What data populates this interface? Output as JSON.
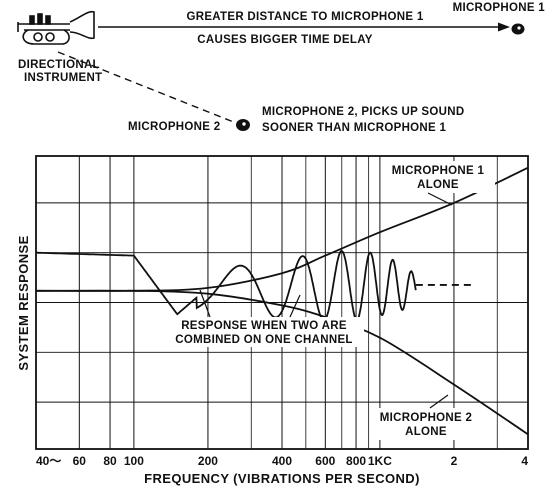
{
  "top": {
    "instrument_label_line1": "DIRECTIONAL",
    "instrument_label_line2": "INSTRUMENT",
    "arrow_text_line1": "GREATER DISTANCE TO MICROPHONE 1",
    "arrow_text_line2": "CAUSES BIGGER TIME DELAY",
    "mic1_label": "MICROPHONE 1",
    "mic2_label": "MICROPHONE 2",
    "mic2_note_line1": "MICROPHONE 2, PICKS UP SOUND",
    "mic2_note_line2": "SOONER THAN MICROPHONE 1"
  },
  "chart": {
    "ylabel": "SYSTEM RESPONSE",
    "xlabel": "FREQUENCY (VIBRATIONS PER SECOND)",
    "x_ticks": [
      "40〜",
      "60",
      "80",
      "100",
      "200",
      "400",
      "600",
      "800",
      "1KC",
      "2",
      "4"
    ],
    "annotations": {
      "mic1_line1": "MICROPHONE 1",
      "mic1_line2": "ALONE",
      "combined_line1": "RESPONSE WHEN TWO ARE",
      "combined_line2": "COMBINED ON ONE CHANNEL",
      "mic2_line1": "MICROPHONE 2",
      "mic2_line2": "ALONE"
    }
  },
  "chart_data": {
    "type": "line",
    "x_scale": "log",
    "x_unit": "Hz",
    "xlim": [
      40,
      4000
    ],
    "x_tick_values": [
      40,
      60,
      80,
      100,
      200,
      400,
      600,
      800,
      1000,
      2000,
      4000
    ],
    "y_axis_values_shown": false,
    "series": [
      {
        "name": "MICROPHONE 1 ALONE",
        "style": "solid",
        "x": [
          40,
          100,
          200,
          400,
          600,
          1000,
          2000,
          4000
        ],
        "y": [
          0.54,
          0.54,
          0.55,
          0.6,
          0.66,
          0.74,
          0.84,
          0.96
        ]
      },
      {
        "name": "MICROPHONE 2 ALONE",
        "style": "solid",
        "x": [
          40,
          100,
          200,
          400,
          600,
          1000,
          2000,
          4000
        ],
        "y": [
          0.54,
          0.54,
          0.53,
          0.49,
          0.45,
          0.38,
          0.22,
          0.05
        ]
      },
      {
        "name": "RESPONSE WHEN TWO ARE COMBINED ON ONE CHANNEL",
        "style": "solid; dashed above 1400",
        "x": [
          40,
          100,
          150,
          200,
          250,
          300,
          350,
          400,
          500,
          600,
          700,
          800,
          900,
          1000,
          1200,
          1400,
          2000,
          4000
        ],
        "y": [
          0.67,
          0.66,
          0.46,
          0.55,
          0.65,
          0.6,
          0.63,
          0.56,
          0.6,
          0.59,
          0.57,
          0.58,
          0.55,
          0.57,
          0.55,
          0.56,
          0.56,
          0.56
        ]
      }
    ]
  }
}
